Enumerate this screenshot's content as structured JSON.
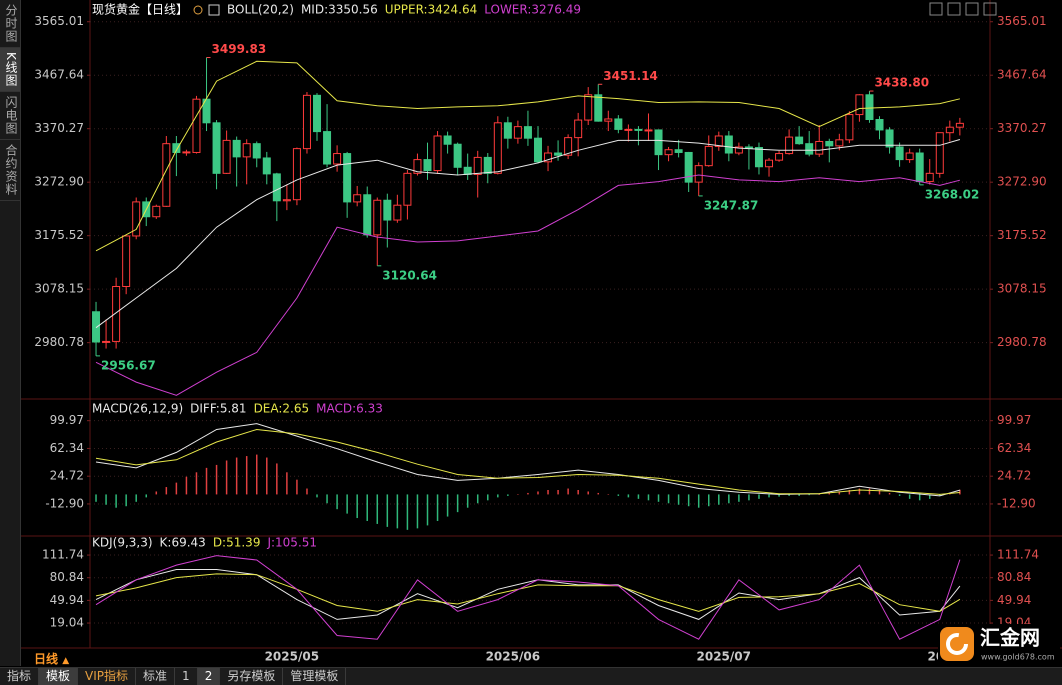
{
  "ui": {
    "side_tabs": [
      "分时图",
      "K线图",
      "闪电图",
      "合约资料"
    ],
    "period": "日线",
    "toolbar": [
      "指标",
      "模板",
      "VIP指标",
      "标准",
      "1",
      "2",
      "另存模板",
      "管理模板"
    ],
    "logo": {
      "name": "汇金网",
      "url": "www.gold678.com"
    }
  },
  "chart_data": [
    {
      "type": "candlestick",
      "title": "现货黄金【日线】",
      "indicator": "BOLL(20,2)",
      "categories": [
        null,
        null,
        null,
        null,
        null,
        null,
        null,
        null,
        null,
        null,
        null,
        null,
        null,
        null,
        null,
        null,
        null,
        null,
        "2025/05",
        null,
        null,
        null,
        null,
        null,
        null,
        null,
        null,
        null,
        null,
        null,
        null,
        null,
        null,
        null,
        null,
        null,
        null,
        null,
        null,
        null,
        "2025/06",
        null,
        null,
        null,
        null,
        null,
        null,
        null,
        null,
        null,
        null,
        null,
        null,
        null,
        null,
        null,
        null,
        null,
        null,
        null,
        null,
        "2025/07",
        null,
        null,
        null,
        null,
        null,
        null,
        null,
        null,
        null,
        null,
        null,
        null,
        null,
        null,
        null,
        null,
        null,
        null,
        null,
        null,
        null,
        null,
        "2025/08",
        null,
        null
      ],
      "open": [
        3037,
        2982,
        2983,
        3083,
        3175,
        3237,
        3210,
        3229,
        3343,
        3327,
        3327,
        3424,
        3381,
        3289,
        3349,
        3319,
        3343,
        3317,
        3288,
        3239,
        3241,
        3334,
        3431,
        3365,
        3306,
        3325,
        3237,
        3250,
        3177,
        3240,
        3204,
        3231,
        3289,
        3314,
        3294,
        3357,
        3342,
        3300,
        3287,
        3318,
        3289,
        3381,
        3353,
        3374,
        3353,
        3310,
        3326,
        3322,
        3354,
        3386,
        3432,
        3384,
        3388,
        3369,
        3369,
        3368,
        3368,
        3323,
        3332,
        3327,
        3273,
        3303,
        3338,
        3357,
        3326,
        3337,
        3336,
        3301,
        3313,
        3325,
        3355,
        3343,
        3324,
        3347,
        3339,
        3350,
        3396,
        3432,
        3387,
        3368,
        3337,
        3314,
        3326,
        3274,
        3289,
        3363,
        3373
      ],
      "high": [
        3055,
        3023,
        3099,
        3175,
        3245,
        3245,
        3232,
        3357,
        3357,
        3332,
        3430,
        3499.83,
        3386,
        3367,
        3356,
        3351,
        3347,
        3328,
        3290,
        3269,
        3336,
        3437,
        3435,
        3415,
        3340,
        3328,
        3266,
        3265,
        3245,
        3252,
        3250,
        3295,
        3325,
        3345,
        3366,
        3365,
        3345,
        3325,
        3330,
        3326,
        3393,
        3392,
        3385,
        3403,
        3375,
        3339,
        3349,
        3360,
        3399,
        3446,
        3451.14,
        3403,
        3395,
        3378,
        3375,
        3398,
        3369,
        3337,
        3350,
        3328,
        3309,
        3358,
        3365,
        3366,
        3345,
        3342,
        3345,
        3317,
        3330,
        3369,
        3375,
        3366,
        3377,
        3352,
        3361,
        3402,
        3433,
        3438.8,
        3393,
        3373,
        3345,
        3334,
        3334,
        3315,
        3363,
        3385,
        3390
      ],
      "low": [
        2956.67,
        2970,
        2970,
        3069,
        3169,
        3193,
        3206,
        3228,
        3284,
        3321,
        3325,
        3366,
        3260,
        3288,
        3265,
        3269,
        3300,
        3269,
        3202,
        3222,
        3231,
        3325,
        3348,
        3300,
        3292,
        3208,
        3229,
        3172,
        3120.64,
        3154,
        3199,
        3205,
        3285,
        3277,
        3288,
        3325,
        3285,
        3277,
        3245,
        3271,
        3287,
        3334,
        3343,
        3339,
        3307,
        3293,
        3312,
        3315,
        3320,
        3377,
        3383,
        3366,
        3362,
        3347,
        3340,
        3348,
        3295,
        3311,
        3318,
        3255,
        3247.87,
        3301,
        3330,
        3311,
        3322,
        3296,
        3287,
        3283,
        3310,
        3323,
        3341,
        3320,
        3319,
        3309,
        3331,
        3344,
        3383,
        3381,
        3351,
        3325,
        3301,
        3308,
        3268.02,
        3268.5,
        3281,
        3347,
        3358
      ],
      "close": [
        2982,
        2983,
        3083,
        3175,
        3237,
        3210,
        3229,
        3343,
        3327,
        3328,
        3424,
        3381,
        3289,
        3349,
        3319,
        3343,
        3317,
        3288,
        3239,
        3241,
        3334,
        3431,
        3365,
        3306,
        3325,
        3237,
        3250,
        3177,
        3240,
        3204,
        3231,
        3289,
        3314,
        3294,
        3357,
        3342,
        3300,
        3287,
        3318,
        3289,
        3381,
        3353,
        3374,
        3353,
        3310,
        3326,
        3322,
        3354,
        3386,
        3432,
        3384,
        3388,
        3369,
        3369,
        3368,
        3368,
        3323,
        3332,
        3327,
        3273,
        3303,
        3338,
        3357,
        3326,
        3337,
        3336,
        3301,
        3313,
        3325,
        3355,
        3343,
        3324,
        3347,
        3339,
        3350,
        3396,
        3432,
        3387,
        3368,
        3337,
        3314,
        3326,
        3274,
        3289,
        3363,
        3373,
        3380
      ],
      "up_color": "#ff3b3b",
      "down_color": "#3cc784",
      "x": [
        0,
        4,
        8,
        12,
        16,
        20,
        24,
        28,
        32,
        36,
        40,
        44,
        48,
        52,
        56,
        60,
        64,
        68,
        72,
        76,
        80,
        84,
        86
      ],
      "series": [
        {
          "name": "MID:3350.56",
          "color": "#e8e8e8",
          "values": [
            3008,
            3062,
            3116,
            3191,
            3241,
            3277,
            3304,
            3313,
            3292,
            3286,
            3292,
            3308,
            3331,
            3349,
            3349,
            3344,
            3335,
            3331,
            3331,
            3340,
            3340,
            3340,
            3350.56
          ]
        },
        {
          "name": "UPPER:3424.64",
          "color": "#e6e64a",
          "values": [
            3148,
            3187,
            3331,
            3457,
            3493,
            3490,
            3421,
            3412,
            3407,
            3410,
            3412,
            3419,
            3430,
            3425,
            3418,
            3419,
            3418,
            3407,
            3374,
            3407,
            3410,
            3416,
            3424.64
          ]
        },
        {
          "name": "LOWER:3276.49",
          "color": "#d040d0",
          "values": [
            2945,
            2909,
            2885,
            2927,
            2963,
            3062,
            3191,
            3173,
            3164,
            3166,
            3175,
            3184,
            3223,
            3267,
            3274,
            3286,
            3277,
            3274,
            3281,
            3274,
            3281,
            3267,
            3276.49
          ]
        }
      ],
      "annotations": [
        {
          "x": 11,
          "value": 3499.83,
          "label": "3499.83",
          "color": "#ff4a4a"
        },
        {
          "x": 0,
          "value": 2956.67,
          "label": "2956.67",
          "color": "#3ccf85"
        },
        {
          "x": 28,
          "value": 3120.64,
          "label": "3120.64",
          "color": "#3ccf85"
        },
        {
          "x": 50,
          "value": 3451.14,
          "label": "3451.14",
          "color": "#ff4a4a"
        },
        {
          "x": 60,
          "value": 3247.87,
          "label": "3247.87",
          "color": "#3ccf85"
        },
        {
          "x": 77,
          "value": 3438.8,
          "label": "3438.80",
          "color": "#ff4a4a"
        },
        {
          "x": 82,
          "value": 3268.02,
          "label": "3268.02",
          "color": "#3ccf85"
        }
      ],
      "xlim": [
        -0.6,
        89
      ],
      "ylim": [
        2880,
        3590
      ],
      "yticks": [
        2980.78,
        3078.15,
        3175.52,
        {
          "value": 3272.9,
          "label": "3272.90"
        },
        3370.27,
        3467.64,
        3565.01
      ],
      "grid": true
    },
    {
      "type": "macd",
      "indicator": "MACD(26,12,9)",
      "x": [
        0,
        4,
        8,
        12,
        16,
        20,
        24,
        28,
        32,
        36,
        40,
        44,
        48,
        52,
        56,
        60,
        64,
        68,
        72,
        76,
        80,
        84,
        86
      ],
      "series": [
        {
          "name": "DIFF:5.81",
          "color": "#e8e8e8",
          "values": [
            44,
            36,
            57,
            88,
            96,
            79,
            62,
            44,
            27,
            19,
            22,
            27,
            33,
            27,
            19,
            8,
            3,
            0,
            1,
            11,
            3,
            -2,
            5.81
          ]
        },
        {
          "name": "DEA:2.65",
          "color": "#e6e64a",
          "values": [
            49,
            40,
            47,
            71,
            88,
            82,
            71,
            57,
            41,
            27,
            22,
            23,
            27,
            26,
            22,
            14,
            6,
            1,
            1,
            6,
            4,
            0,
            2.65
          ]
        }
      ],
      "histogram": {
        "name": "MACD:6.33",
        "color": "#d040d0",
        "up_color": "#e04040",
        "down_color": "#2fb87a",
        "values": [
          -10,
          -14,
          -18,
          -16,
          -10,
          -4,
          4,
          10,
          16,
          24,
          30,
          36,
          40,
          46,
          50,
          52,
          54,
          50,
          42,
          30,
          20,
          8,
          -4,
          -12,
          -20,
          -26,
          -32,
          -36,
          -40,
          -44,
          -46,
          -48,
          -46,
          -42,
          -36,
          -30,
          -24,
          -18,
          -12,
          -8,
          -4,
          -2,
          0,
          2,
          4,
          6,
          6,
          8,
          6,
          4,
          2,
          0,
          -2,
          -4,
          -6,
          -8,
          -10,
          -12,
          -14,
          -16,
          -18,
          -16,
          -14,
          -12,
          -10,
          -8,
          -6,
          -4,
          -3,
          -2,
          -2,
          -1,
          0,
          2,
          4,
          6,
          8,
          8,
          6,
          2,
          -2,
          -6,
          -8,
          -6,
          -2,
          2,
          6.33
        ]
      },
      "xlim": [
        -0.6,
        89
      ],
      "ylim": [
        -55,
        128
      ],
      "yticks": [
        {
          "value": -12.9,
          "label": "-12.90"
        },
        24.72,
        62.34,
        99.97
      ],
      "grid": true
    },
    {
      "type": "line",
      "indicator": "KDJ(9,3,3)",
      "x": [
        0,
        4,
        8,
        12,
        16,
        20,
        24,
        28,
        32,
        36,
        40,
        44,
        48,
        52,
        56,
        60,
        64,
        68,
        72,
        76,
        80,
        84,
        86
      ],
      "series": [
        {
          "name": "K:69.43",
          "color": "#e8e8e8",
          "values": [
            51,
            78,
            92,
            92,
            85,
            51,
            24,
            30,
            59,
            40,
            65,
            78,
            71,
            71,
            43,
            24,
            60,
            51,
            59,
            81,
            30,
            35,
            69.43
          ]
        },
        {
          "name": "D:51.39",
          "color": "#e6e64a",
          "values": [
            56,
            67,
            81,
            86,
            85,
            65,
            43,
            35,
            51,
            45,
            59,
            71,
            70,
            70,
            51,
            35,
            54,
            55,
            59,
            73,
            44,
            35,
            51.39
          ]
        },
        {
          "name": "J:105.51",
          "color": "#d040d0",
          "values": [
            44,
            78,
            98,
            111,
            105,
            65,
            2,
            -3,
            78,
            35,
            51,
            78,
            75,
            70,
            24,
            -3,
            78,
            37,
            51,
            98,
            -3,
            24,
            105.51
          ]
        }
      ],
      "xlim": [
        -0.6,
        89
      ],
      "ylim": [
        -15,
        135
      ],
      "yticks": [
        19.04,
        49.94,
        80.84,
        111.74
      ],
      "grid": true
    }
  ]
}
